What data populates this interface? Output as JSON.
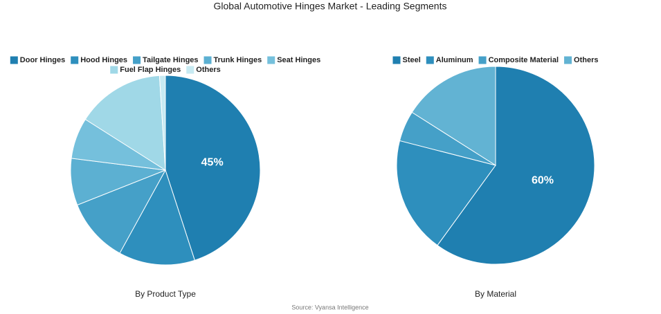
{
  "title": "Global Automotive Hinges Market - Leading Segments",
  "source": "Source: Vyansa Intelligence",
  "chart_data": [
    {
      "type": "pie",
      "title": "By Product Type",
      "categories": [
        "Door Hinges",
        "Hood Hinges",
        "Tailgate Hinges",
        "Trunk Hinges",
        "Seat Hinges",
        "Fuel Flap Hinges",
        "Others"
      ],
      "values": [
        45,
        13,
        11,
        8,
        7,
        15,
        1
      ],
      "value_labels": [
        "45%",
        null,
        null,
        null,
        null,
        null,
        null
      ],
      "colors": [
        "#1f7fb0",
        "#2e8fbd",
        "#45a0c8",
        "#5cb0d2",
        "#75c0dc",
        "#a0d8e7",
        "#c7eaf2"
      ]
    },
    {
      "type": "pie",
      "title": "By Material",
      "categories": [
        "Steel",
        "Aluminum",
        "Composite Material",
        "Others"
      ],
      "values": [
        60,
        19,
        5,
        16
      ],
      "value_labels": [
        "60%",
        null,
        null,
        null
      ],
      "colors": [
        "#1f7fb0",
        "#2e8fbd",
        "#45a0c8",
        "#62b3d3"
      ]
    }
  ]
}
